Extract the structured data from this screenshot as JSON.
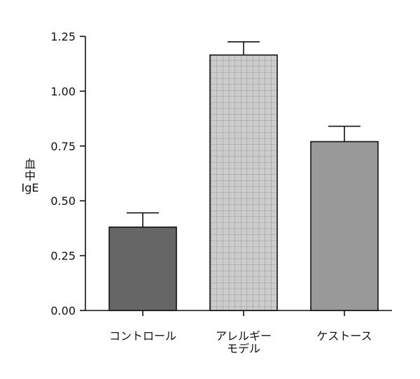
{
  "chart_data": {
    "type": "bar",
    "categories": [
      {
        "lines": [
          "コントロール"
        ]
      },
      {
        "lines": [
          "アレルギー",
          "モデル"
        ]
      },
      {
        "lines": [
          "ケストース"
        ]
      }
    ],
    "values": [
      0.38,
      1.165,
      0.77
    ],
    "errors": [
      0.065,
      0.06,
      0.07
    ],
    "ylabel_lines": [
      "血",
      "中",
      "IgE"
    ],
    "ylim": [
      0,
      1.25
    ],
    "yticks": [
      "0.00",
      "0.25",
      "0.50",
      "0.75",
      "1.00",
      "1.25"
    ],
    "bar_fills": [
      "#666666",
      "#cccccc",
      "#999999"
    ],
    "bar_patterns": [
      "none",
      "grid",
      "none"
    ],
    "grid": false,
    "legend": "none"
  }
}
